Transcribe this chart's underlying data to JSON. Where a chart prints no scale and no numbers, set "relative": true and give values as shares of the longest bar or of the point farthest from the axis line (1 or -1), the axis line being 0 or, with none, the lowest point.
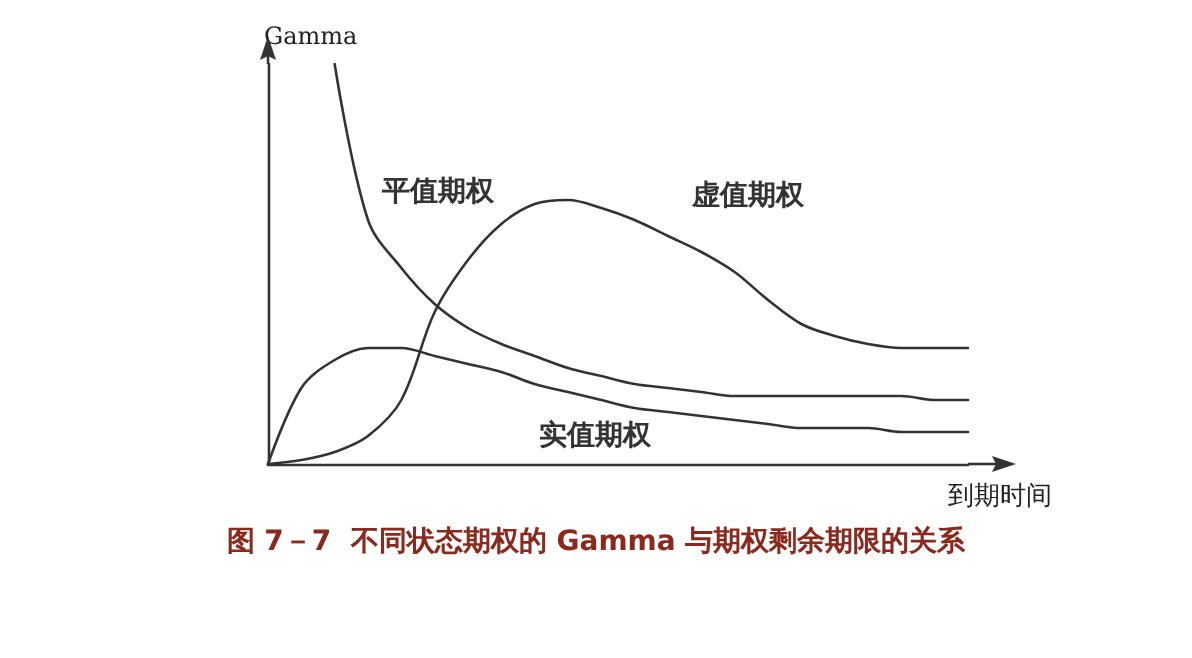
{
  "chart_data": {
    "type": "line",
    "relative": true,
    "title": "图 7－7  不同状态期权的 Gamma 与期权剩余期限的关系",
    "xlabel": "到期时间",
    "ylabel": "Gamma",
    "marker": "none",
    "line_style": "solid",
    "grid": false,
    "legend": false,
    "categories": [
      null,
      null,
      null,
      null,
      null,
      null,
      null,
      null,
      null,
      null,
      null,
      null,
      null,
      null,
      null,
      null,
      null,
      null,
      null,
      null,
      null,
      null
    ],
    "series": [
      {
        "name": "平值期权",
        "color": "#333333",
        "values": [
          null,
          null,
          1.0,
          0.61,
          0.49,
          0.4,
          0.34,
          0.3,
          0.27,
          0.24,
          0.22,
          0.2,
          0.19,
          0.18,
          0.17,
          0.17,
          0.17,
          0.17,
          0.17,
          0.17,
          0.16,
          0.16
        ]
      },
      {
        "name": "虚值期权",
        "color": "#333333",
        "values": [
          0,
          0.01,
          0.03,
          0.07,
          0.16,
          0.38,
          0.51,
          0.6,
          0.65,
          0.66,
          0.64,
          0.61,
          0.57,
          0.53,
          0.48,
          0.41,
          0.35,
          0.32,
          0.3,
          0.29,
          0.29,
          0.29
        ]
      },
      {
        "name": "实值期权",
        "color": "#333333",
        "values": [
          0,
          0.19,
          0.26,
          0.29,
          0.29,
          0.27,
          0.25,
          0.23,
          0.2,
          0.18,
          0.16,
          0.14,
          0.13,
          0.12,
          0.11,
          0.1,
          0.09,
          0.09,
          0.09,
          0.08,
          0.08,
          0.08
        ]
      }
    ]
  }
}
